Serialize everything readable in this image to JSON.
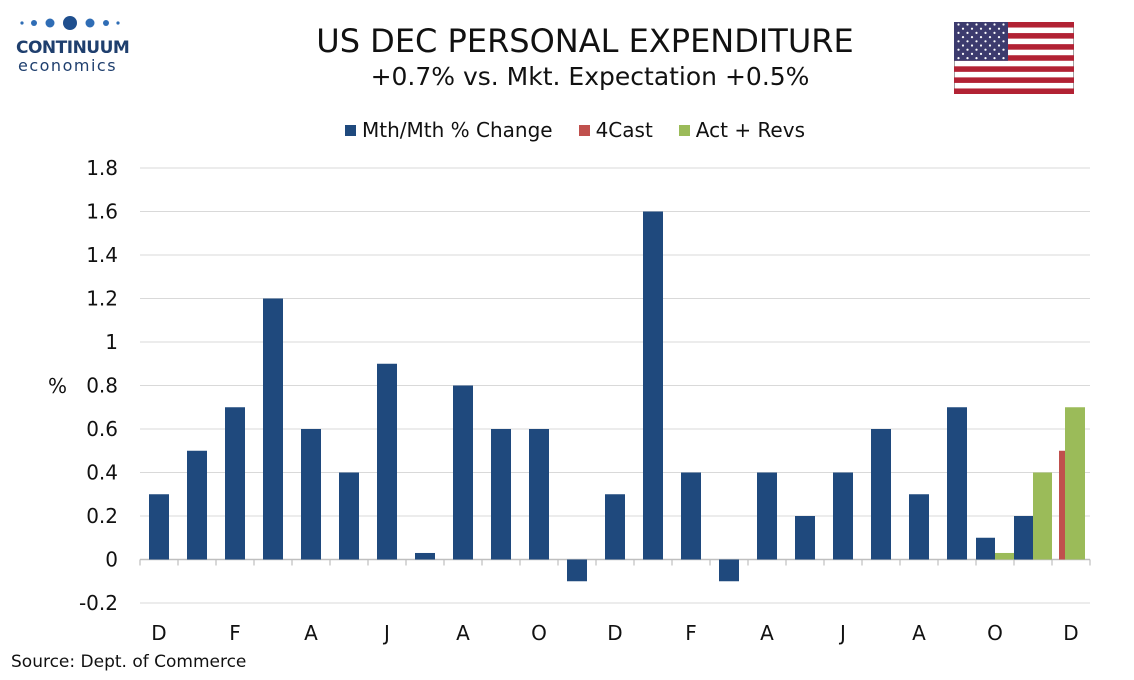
{
  "logo": {
    "brand": "CONTINUUM",
    "sub": "economics"
  },
  "header": {
    "title": "US DEC PERSONAL EXPENDITURE",
    "subtitle": "+0.7% vs. Mkt. Expectation +0.5%"
  },
  "source": "Source: Dept. of Commerce",
  "colors": {
    "mth": "#1f497d",
    "forecast": "#c0504d",
    "actual": "#9bbb59",
    "grid": "#d9d9d9",
    "axis": "#bfbfbf"
  },
  "chart_data": {
    "type": "bar",
    "title": "US DEC PERSONAL EXPENDITURE",
    "subtitle": "+0.7% vs. Mkt. Expectation +0.5%",
    "ylabel": "%",
    "ylim": [
      -0.2,
      1.8
    ],
    "yticks": [
      -0.2,
      0,
      0.2,
      0.4,
      0.6,
      0.8,
      1,
      1.2,
      1.4,
      1.6,
      1.8
    ],
    "ytick_labels": [
      "-0.2",
      "0",
      "0.2",
      "0.4",
      "0.6",
      "0.8",
      "1",
      "1.2",
      "1.4",
      "1.6",
      "1.8"
    ],
    "grid": true,
    "legend": "top-center",
    "x_tick_labels": [
      "D",
      "F",
      "A",
      "J",
      "A",
      "O",
      "D",
      "F",
      "A",
      "J",
      "A",
      "O",
      "D"
    ],
    "x_tick_every": 2,
    "num_periods": 25,
    "series": [
      {
        "name": "Mth/Mth % Change",
        "color": "#1f497d",
        "values": [
          0.3,
          0.5,
          0.7,
          1.2,
          0.6,
          0.4,
          0.9,
          0.03,
          0.8,
          0.6,
          0.6,
          -0.1,
          0.3,
          1.6,
          0.4,
          -0.1,
          0.4,
          0.2,
          0.4,
          0.6,
          0.3,
          0.7,
          0.1,
          0.2,
          null
        ]
      },
      {
        "name": "4Cast",
        "color": "#c0504d",
        "values": [
          null,
          null,
          null,
          null,
          null,
          null,
          null,
          null,
          null,
          null,
          null,
          null,
          null,
          null,
          null,
          null,
          null,
          null,
          null,
          null,
          null,
          null,
          null,
          null,
          0.5
        ]
      },
      {
        "name": "Act + Revs",
        "color": "#9bbb59",
        "values": [
          null,
          null,
          null,
          null,
          null,
          null,
          null,
          null,
          null,
          null,
          null,
          null,
          null,
          null,
          null,
          null,
          null,
          null,
          null,
          null,
          null,
          null,
          0.03,
          0.4,
          0.7
        ]
      }
    ]
  }
}
